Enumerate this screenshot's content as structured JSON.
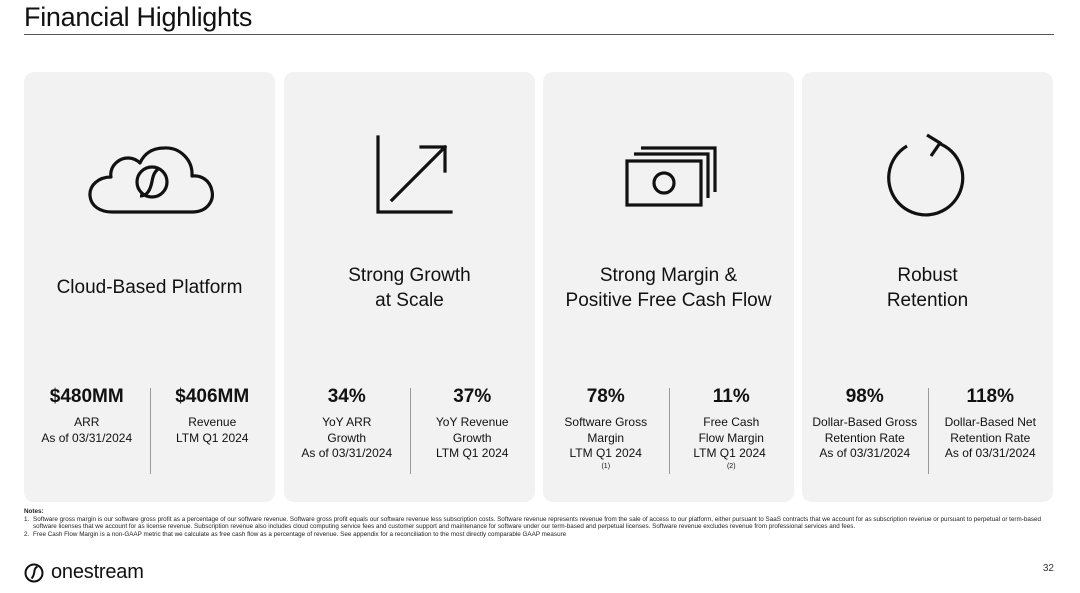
{
  "title": "Financial Highlights",
  "cards": [
    {
      "icon": "cloud-icon",
      "heading": [
        "Cloud-Based Platform"
      ],
      "metrics": [
        {
          "value": "$480MM",
          "label": [
            "ARR",
            "As of 03/31/2024"
          ],
          "footnote": ""
        },
        {
          "value": "$406MM",
          "label": [
            "Revenue",
            "LTM Q1 2024"
          ],
          "footnote": ""
        }
      ]
    },
    {
      "icon": "growth-arrow-icon",
      "heading": [
        "Strong Growth",
        "at Scale"
      ],
      "metrics": [
        {
          "value": "34%",
          "label": [
            "YoY ARR",
            "Growth",
            "As of 03/31/2024"
          ],
          "footnote": ""
        },
        {
          "value": "37%",
          "label": [
            "YoY Revenue",
            "Growth",
            "LTM Q1 2024"
          ],
          "footnote": ""
        }
      ]
    },
    {
      "icon": "cash-icon",
      "heading": [
        "Strong Margin &",
        "Positive Free Cash Flow"
      ],
      "metrics": [
        {
          "value": "78%",
          "label": [
            "Software Gross",
            "Margin",
            "LTM Q1 2024"
          ],
          "footnote": "(1)"
        },
        {
          "value": "11%",
          "label": [
            "Free Cash",
            "Flow Margin",
            "LTM Q1 2024 "
          ],
          "footnote": "(2)"
        }
      ]
    },
    {
      "icon": "retention-arrow-icon",
      "heading": [
        "Robust",
        "Retention"
      ],
      "metrics": [
        {
          "value": "98%",
          "label": [
            "Dollar-Based Gross",
            "Retention Rate",
            "As of 03/31/2024"
          ],
          "footnote": ""
        },
        {
          "value": "118%",
          "label": [
            "Dollar-Based Net",
            "Retention Rate",
            "As of 03/31/2024"
          ],
          "footnote": ""
        }
      ]
    }
  ],
  "notes": {
    "title": "Notes:",
    "items": [
      {
        "num": "1.",
        "text": "Software gross margin is our software gross profit as a percentage of our software revenue. Software gross profit equals our software revenue less subscription costs. Software revenue represents revenue from the sale of access to our platform, either pursuant to SaaS contracts that we account for as subscription revenue or pursuant to perpetual or term-based software licenses that we account for as license revenue. Subscription revenue also includes cloud computing service fees and customer support and maintenance for software under our term-based and perpetual licenses. Software revenue excludes revenue from professional services and fees."
      },
      {
        "num": "2.",
        "text": "Free Cash Flow Margin is a non-GAAP metric that we calculate as free cash flow as a percentage of revenue. See appendix for a reconciliation to the most directly comparable GAAP measure"
      }
    ]
  },
  "footer": {
    "logo_icon": "onestream-logo-icon",
    "logo_text": "onestream",
    "page_number": "32"
  }
}
